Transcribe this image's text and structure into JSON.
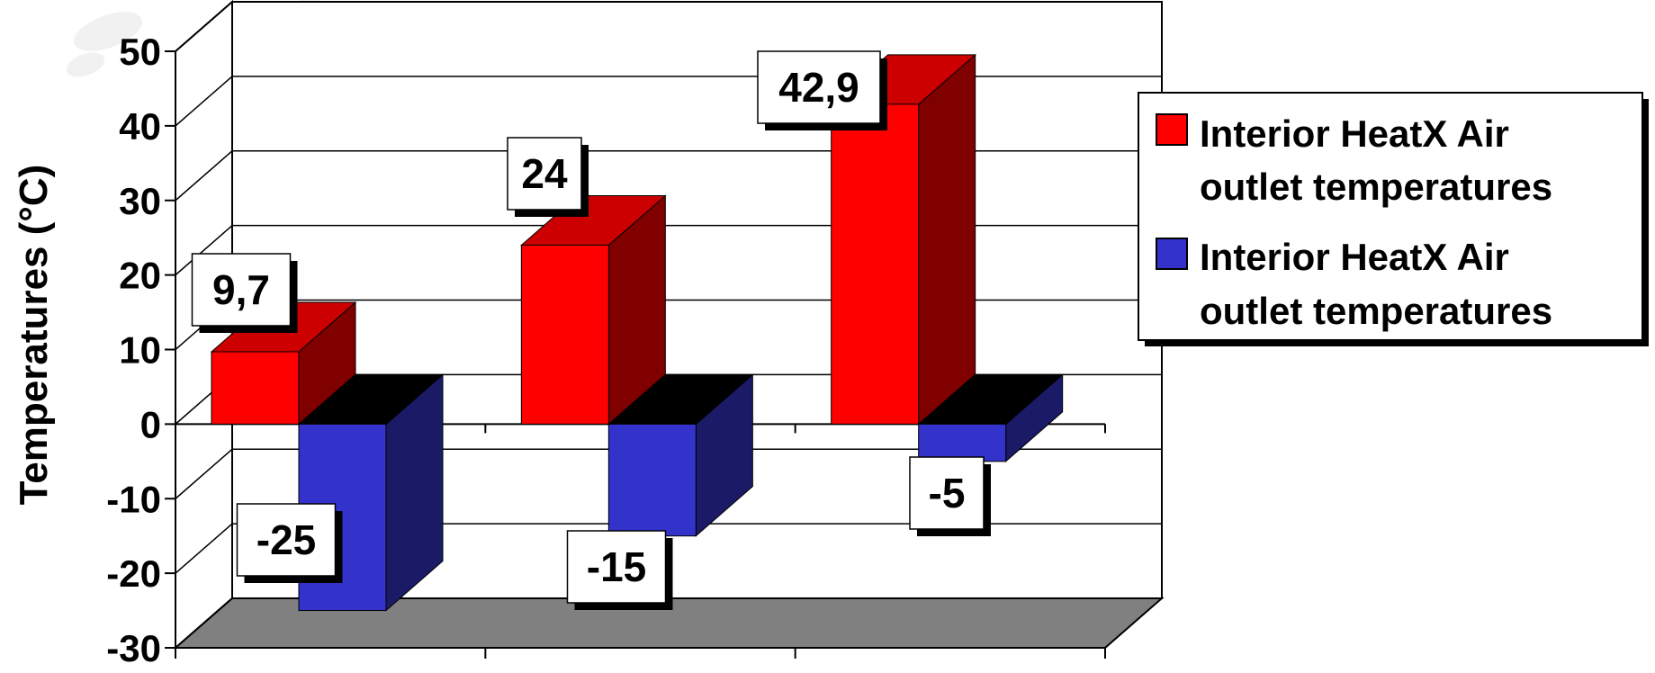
{
  "chart_data": {
    "type": "bar",
    "title": "",
    "xlabel": "",
    "ylabel": "Temperatures (°C)",
    "ylim": [
      -30,
      50
    ],
    "yticks": [
      50,
      40,
      30,
      20,
      10,
      0,
      -10,
      -20,
      -30
    ],
    "categories": [
      "",
      "",
      ""
    ],
    "three_d": true,
    "grid": true,
    "legend_position": "right",
    "series": [
      {
        "name": "Interior HeatX Air outlet temperatures",
        "values": [
          9.7,
          24,
          42.9
        ],
        "data_labels": [
          "9,7",
          "24",
          "42,9"
        ],
        "color": "#ff0000"
      },
      {
        "name": "Interior HeatX Air outlet temperatures",
        "values": [
          -25,
          -15,
          -5
        ],
        "data_labels": [
          "-25",
          "-15",
          "-5"
        ],
        "color": "#3333cc"
      }
    ]
  },
  "legend": {
    "items": [
      {
        "line1": "Interior HeatX Air",
        "line2": "outlet temperatures"
      },
      {
        "line1": "Interior HeatX Air",
        "line2": "outlet temperatures"
      }
    ]
  }
}
